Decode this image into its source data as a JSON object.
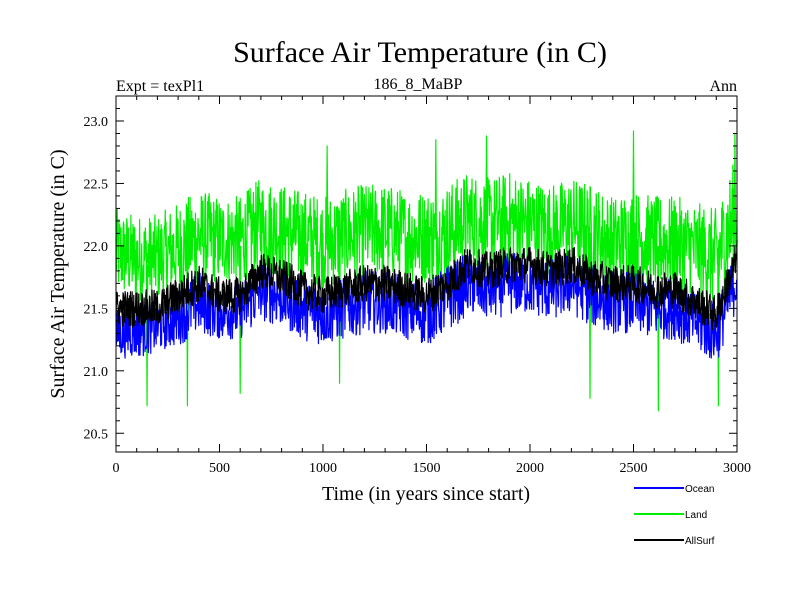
{
  "chart_data": {
    "type": "line",
    "title": "Surface Air Temperature (in C)",
    "subtitle_left": "Expt = texPl1",
    "subtitle_center": "186_8_MaBP",
    "subtitle_right": "Ann",
    "xlabel": "Time (in years since start)",
    "ylabel": "Surface Air Temperature (in C)",
    "xlim": [
      0,
      3000
    ],
    "ylim": [
      20.35,
      23.2
    ],
    "xticks": [
      0,
      500,
      1000,
      1500,
      2000,
      2500,
      3000
    ],
    "xtick_labels": [
      "0",
      "500",
      "1000",
      "1500",
      "2000",
      "2500",
      "3000"
    ],
    "yticks": [
      20.5,
      21.0,
      21.5,
      22.0,
      22.5,
      23.0
    ],
    "ytick_labels": [
      "20.5",
      "21.0",
      "21.5",
      "22.0",
      "22.5",
      "23.0"
    ],
    "legend_position": "bottom-right",
    "grid": false,
    "x": [
      0,
      100,
      200,
      300,
      400,
      500,
      600,
      700,
      800,
      900,
      1000,
      1100,
      1200,
      1300,
      1400,
      1500,
      1600,
      1700,
      1800,
      1900,
      2000,
      2100,
      2200,
      2300,
      2400,
      2500,
      2600,
      2700,
      2800,
      2900,
      3000
    ],
    "series": [
      {
        "name": "Land",
        "color": "#00ee00",
        "values": [
          21.95,
          21.85,
          21.85,
          21.9,
          22.05,
          22.0,
          22.0,
          22.15,
          22.1,
          22.05,
          22.0,
          22.05,
          22.1,
          22.1,
          22.05,
          22.05,
          22.05,
          22.2,
          22.15,
          22.15,
          22.15,
          22.1,
          22.15,
          22.1,
          22.0,
          22.05,
          22.0,
          22.0,
          21.95,
          21.85,
          22.2
        ],
        "range_low": [
          21.6,
          21.55,
          21.55,
          21.6,
          21.7,
          21.7,
          21.7,
          21.8,
          21.75,
          21.7,
          21.65,
          21.7,
          21.75,
          21.75,
          21.7,
          21.7,
          21.7,
          21.85,
          21.8,
          21.8,
          21.8,
          21.75,
          21.8,
          21.75,
          21.65,
          21.7,
          21.65,
          21.65,
          21.6,
          21.5,
          21.8
        ],
        "range_high": [
          22.3,
          22.25,
          22.25,
          22.35,
          22.45,
          22.4,
          22.4,
          22.55,
          22.5,
          22.45,
          22.4,
          22.45,
          22.5,
          22.5,
          22.45,
          22.45,
          22.5,
          22.6,
          22.55,
          22.6,
          22.55,
          22.5,
          22.55,
          22.5,
          22.4,
          22.45,
          22.4,
          22.4,
          22.35,
          22.3,
          22.75
        ]
      },
      {
        "name": "Ocean",
        "color": "#0000ff",
        "values": [
          21.3,
          21.35,
          21.35,
          21.45,
          21.55,
          21.45,
          21.45,
          21.65,
          21.6,
          21.5,
          21.45,
          21.5,
          21.55,
          21.55,
          21.5,
          21.45,
          21.55,
          21.7,
          21.65,
          21.7,
          21.7,
          21.65,
          21.7,
          21.6,
          21.55,
          21.55,
          21.5,
          21.5,
          21.4,
          21.3,
          21.75
        ],
        "range_low": [
          21.1,
          21.1,
          21.15,
          21.2,
          21.3,
          21.25,
          21.25,
          21.4,
          21.35,
          21.25,
          21.2,
          21.25,
          21.3,
          21.3,
          21.25,
          21.2,
          21.3,
          21.45,
          21.4,
          21.45,
          21.45,
          21.4,
          21.45,
          21.35,
          21.3,
          21.3,
          21.25,
          21.25,
          21.15,
          21.05,
          21.5
        ],
        "range_high": [
          21.5,
          21.55,
          21.55,
          21.65,
          21.8,
          21.7,
          21.7,
          21.9,
          21.85,
          21.75,
          21.7,
          21.75,
          21.8,
          21.8,
          21.75,
          21.7,
          21.85,
          21.95,
          21.9,
          21.95,
          21.95,
          21.9,
          21.95,
          21.85,
          21.8,
          21.8,
          21.75,
          21.75,
          21.65,
          21.55,
          22.0
        ]
      },
      {
        "name": "AllSurf",
        "color": "#000000",
        "values": [
          21.5,
          21.5,
          21.5,
          21.6,
          21.7,
          21.6,
          21.6,
          21.8,
          21.75,
          21.65,
          21.6,
          21.65,
          21.7,
          21.7,
          21.65,
          21.6,
          21.7,
          21.85,
          21.8,
          21.85,
          21.85,
          21.8,
          21.85,
          21.75,
          21.7,
          21.7,
          21.65,
          21.65,
          21.55,
          21.45,
          21.9
        ],
        "range_low": [
          21.35,
          21.35,
          21.35,
          21.45,
          21.55,
          21.45,
          21.45,
          21.65,
          21.6,
          21.5,
          21.45,
          21.5,
          21.55,
          21.55,
          21.5,
          21.45,
          21.55,
          21.7,
          21.65,
          21.7,
          21.7,
          21.65,
          21.7,
          21.6,
          21.55,
          21.55,
          21.5,
          21.5,
          21.4,
          21.3,
          21.75
        ],
        "range_high": [
          21.65,
          21.65,
          21.65,
          21.75,
          21.85,
          21.75,
          21.75,
          21.95,
          21.9,
          21.8,
          21.75,
          21.8,
          21.85,
          21.85,
          21.8,
          21.75,
          21.85,
          22.0,
          21.95,
          22.0,
          22.0,
          21.95,
          22.0,
          21.9,
          21.85,
          21.85,
          21.8,
          21.8,
          21.7,
          21.6,
          22.05
        ]
      }
    ],
    "annotations": [
      {
        "series": "Land",
        "x": 150,
        "y": 20.72
      },
      {
        "series": "Land",
        "x": 345,
        "y": 20.72
      },
      {
        "series": "Land",
        "x": 600,
        "y": 20.82
      },
      {
        "series": "Land",
        "x": 1080,
        "y": 20.9
      },
      {
        "series": "Land",
        "x": 2290,
        "y": 20.78
      },
      {
        "series": "Land",
        "x": 2620,
        "y": 20.68
      },
      {
        "series": "Land",
        "x": 2910,
        "y": 20.72
      },
      {
        "series": "Land",
        "x": 1020,
        "y": 22.8
      },
      {
        "series": "Land",
        "x": 1545,
        "y": 22.85
      },
      {
        "series": "Land",
        "x": 1790,
        "y": 22.88
      },
      {
        "series": "Land",
        "x": 2500,
        "y": 22.92
      },
      {
        "series": "Land",
        "x": 2990,
        "y": 22.9
      }
    ]
  }
}
